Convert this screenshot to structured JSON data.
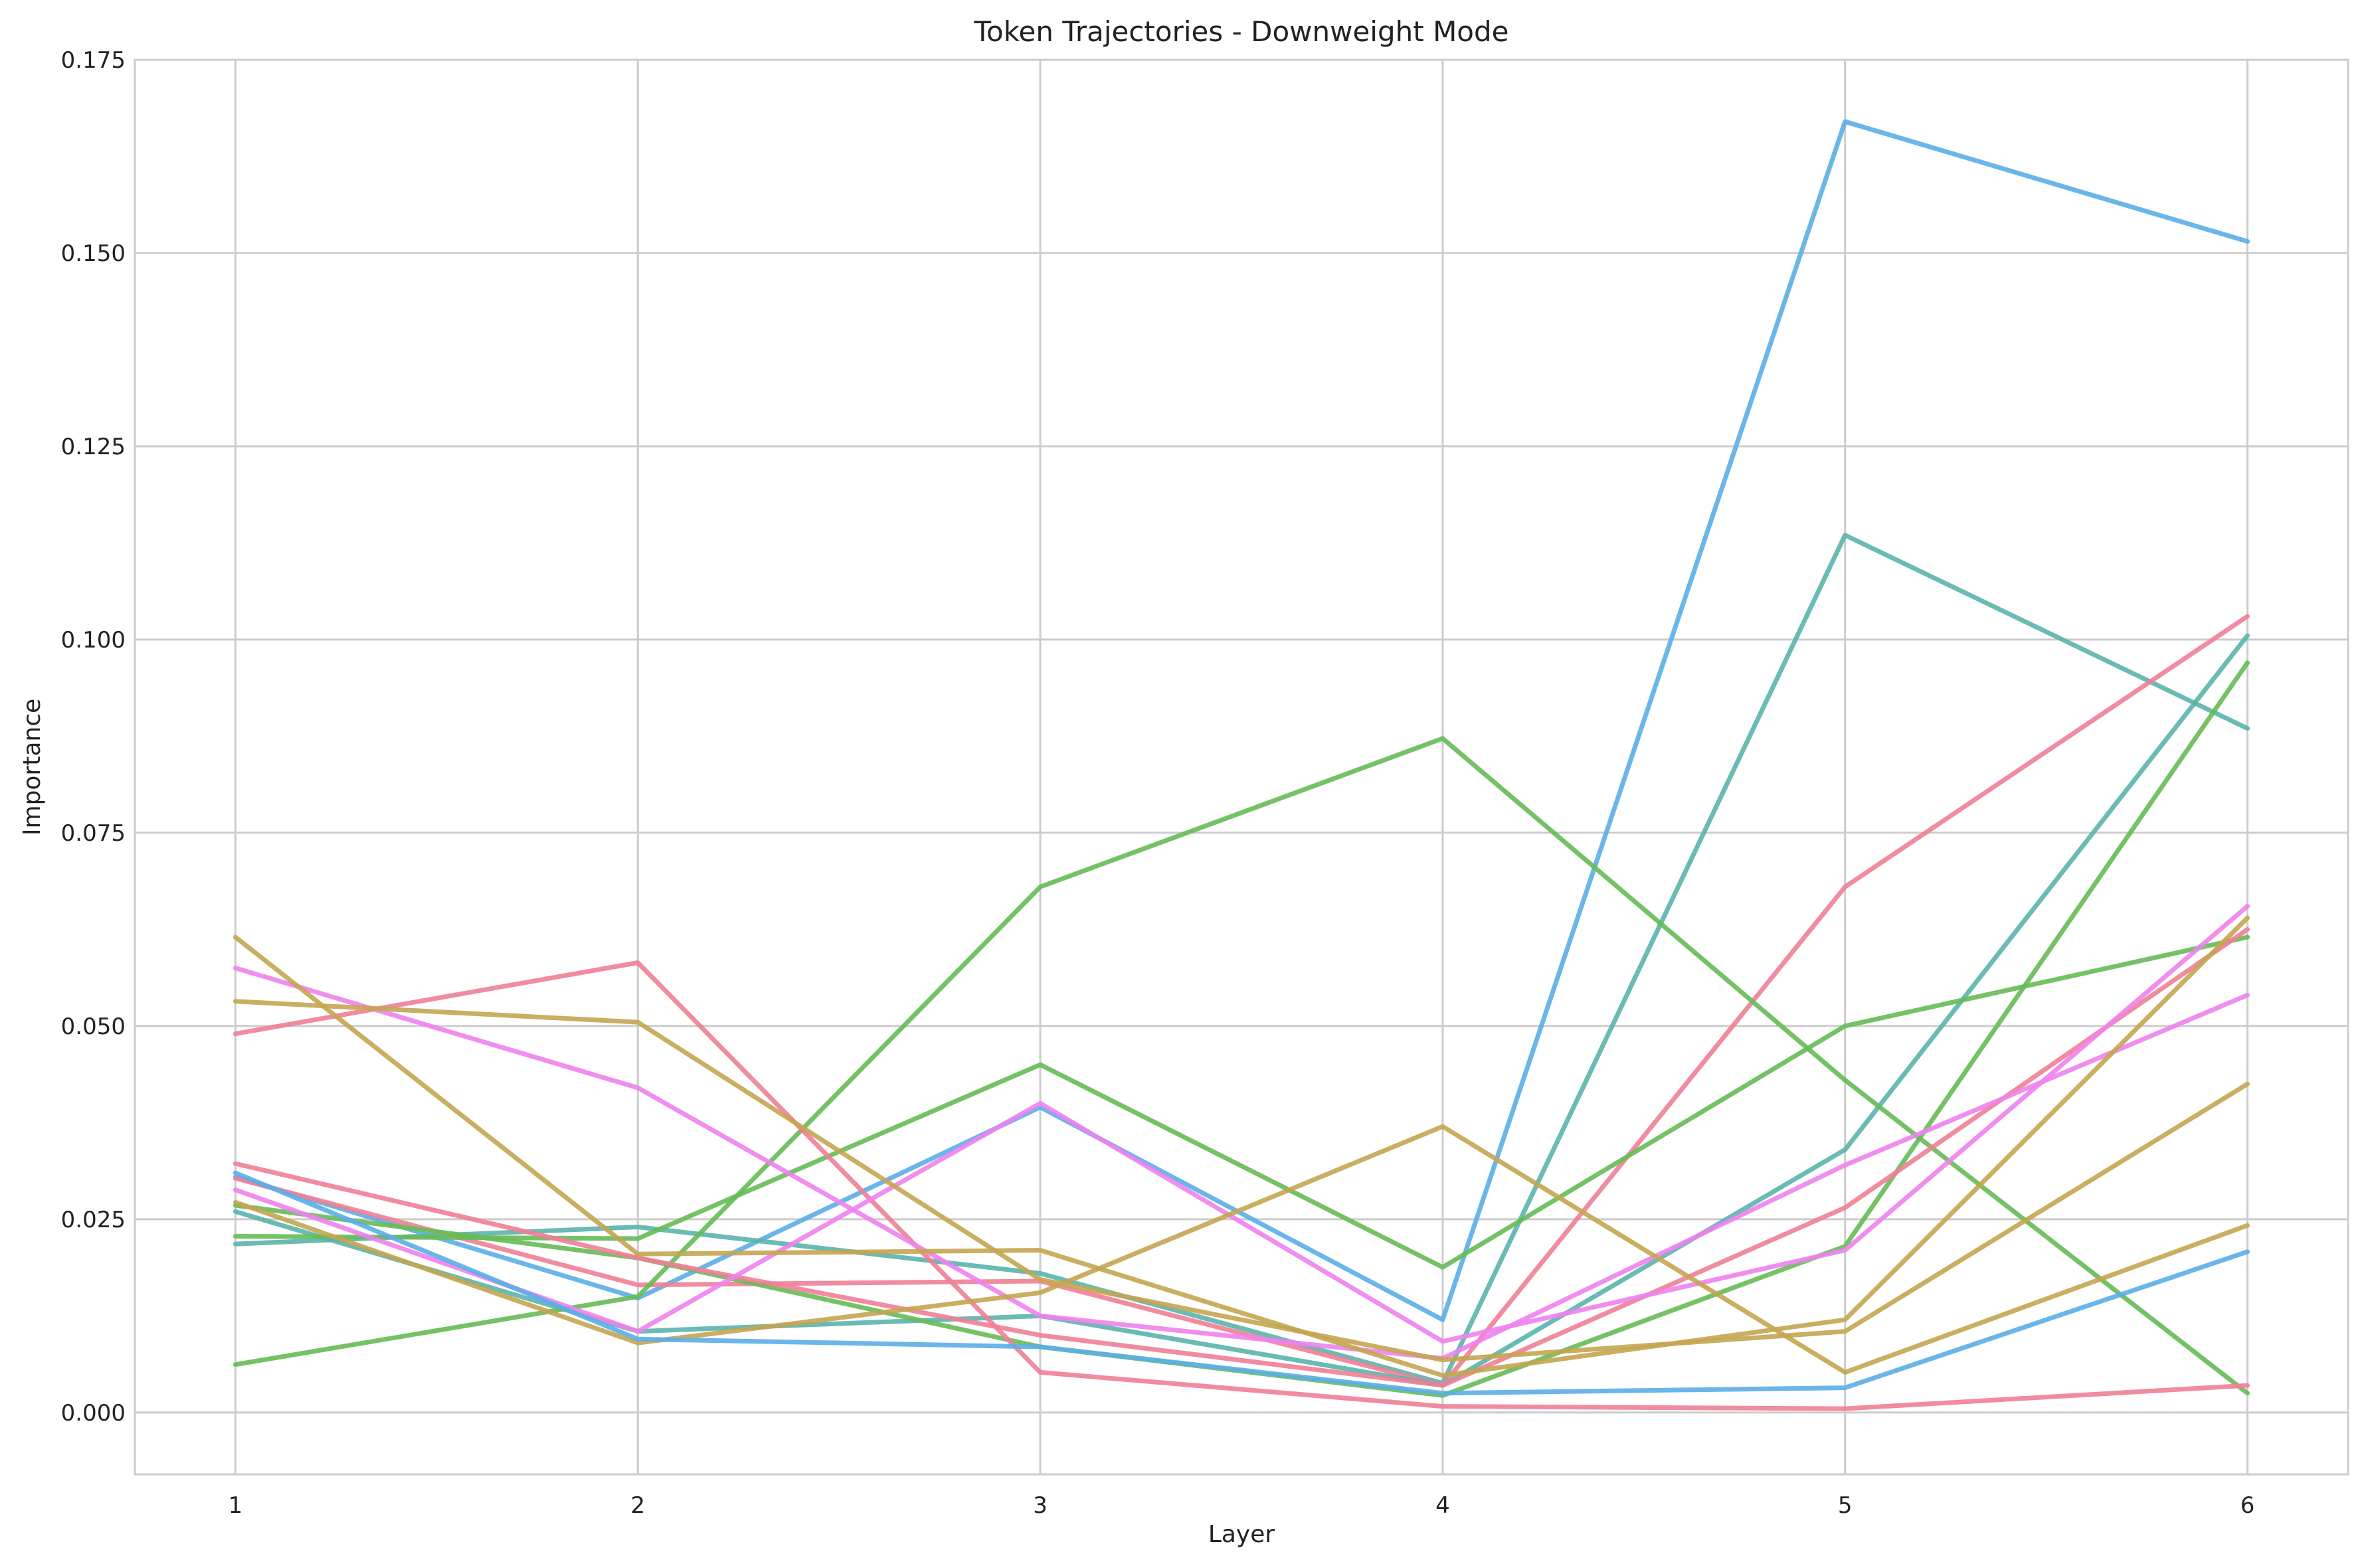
{
  "chart_data": {
    "type": "line",
    "title": "Token Trajectories - Downweight Mode",
    "xlabel": "Layer",
    "ylabel": "Importance",
    "x": [
      1,
      2,
      3,
      4,
      5,
      6
    ],
    "x_ticks": [
      "1",
      "2",
      "3",
      "4",
      "5",
      "6"
    ],
    "y_ticks": [
      "0.000",
      "0.025",
      "0.050",
      "0.075",
      "0.100",
      "0.125",
      "0.150",
      "0.175"
    ],
    "xlim": [
      0.75,
      6.25
    ],
    "ylim": [
      -0.008,
      0.175
    ],
    "grid": true,
    "legend": "none",
    "series": [
      {
        "color": "#5aaee8",
        "values": [
          0.0305,
          0.0148,
          0.0395,
          0.012,
          0.167,
          0.1515
        ]
      },
      {
        "color": "#5ab4ac",
        "values": [
          0.0218,
          0.024,
          0.018,
          0.0038,
          0.1135,
          0.0885
        ]
      },
      {
        "color": "#ef7f96",
        "values": [
          0.0303,
          0.0165,
          0.017,
          0.0035,
          0.068,
          0.103
        ]
      },
      {
        "color": "#5ab4ac",
        "values": [
          0.026,
          0.0105,
          0.0125,
          0.0035,
          0.034,
          0.1005
        ]
      },
      {
        "color": "#66bb55",
        "values": [
          0.0228,
          0.0225,
          0.045,
          0.0188,
          0.05,
          0.0615
        ]
      },
      {
        "color": "#66bb55",
        "values": [
          0.0062,
          0.015,
          0.068,
          0.0872,
          0.043,
          0.0025
        ]
      },
      {
        "color": "#66bb55",
        "values": [
          0.0268,
          0.02,
          0.0085,
          0.0022,
          0.0215,
          0.097
        ]
      },
      {
        "color": "#ef7f96",
        "values": [
          0.049,
          0.0582,
          0.0052,
          0.0008,
          0.0005,
          0.0035
        ]
      },
      {
        "color": "#ef7f96",
        "values": [
          0.0322,
          0.02,
          0.01,
          0.0035,
          0.0265,
          0.0625
        ]
      },
      {
        "color": "#ee82ee",
        "values": [
          0.0575,
          0.042,
          0.0125,
          0.007,
          0.032,
          0.054
        ]
      },
      {
        "color": "#ee82ee",
        "values": [
          0.0288,
          0.0105,
          0.04,
          0.0092,
          0.021,
          0.0655
        ]
      },
      {
        "color": "#c4a550",
        "values": [
          0.0615,
          0.0205,
          0.021,
          0.0048,
          0.012,
          0.064
        ]
      },
      {
        "color": "#c4a550",
        "values": [
          0.0532,
          0.0505,
          0.0172,
          0.0068,
          0.0105,
          0.0425
        ]
      },
      {
        "color": "#c4a550",
        "values": [
          0.0272,
          0.009,
          0.0155,
          0.037,
          0.0052,
          0.0242
        ]
      },
      {
        "color": "#5aaee8",
        "values": [
          0.031,
          0.0095,
          0.0085,
          0.0025,
          0.0032,
          0.0208
        ]
      }
    ]
  }
}
